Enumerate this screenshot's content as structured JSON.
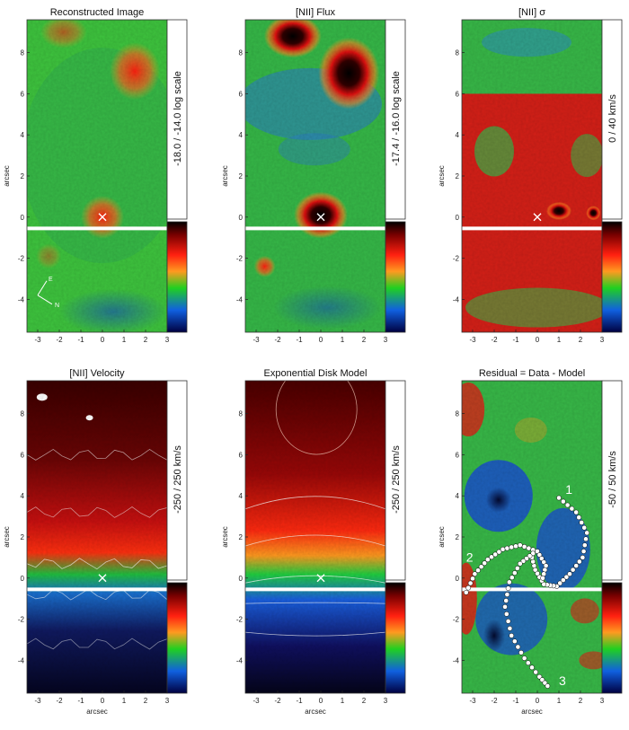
{
  "figure": {
    "panels": [
      {
        "id": "reconstructed",
        "title": "Reconstructed Image",
        "colorbar_label": "-18.0 / -14.0  log scale",
        "map_type": "blobs"
      },
      {
        "id": "nii-flux",
        "title": "[NII] Flux",
        "colorbar_label": "-17.4 / -16.0  log scale",
        "map_type": "blobs"
      },
      {
        "id": "nii-sigma",
        "title": "[NII] σ",
        "colorbar_label": "0 / 40  km/s",
        "map_type": "sigma"
      },
      {
        "id": "nii-velocity",
        "title": "[NII] Velocity",
        "colorbar_label": "-250 / 250  km/s",
        "map_type": "velocity"
      },
      {
        "id": "disk-model",
        "title": "Exponential Disk Model",
        "colorbar_label": "-250 / 250  km/s",
        "map_type": "model"
      },
      {
        "id": "residual",
        "title": "Residual = Data - Model",
        "colorbar_label": "-50 / 50  km/s",
        "map_type": "residual"
      }
    ],
    "x_axis": {
      "label": "arcsec",
      "ticks": [
        "-3",
        "-2",
        "-1",
        "0",
        "1",
        "2",
        "3"
      ]
    },
    "y_axis": {
      "label": "arcsec",
      "ticks": [
        "8",
        "6",
        "4",
        "2",
        "0",
        "-2",
        "-4"
      ]
    },
    "compass": {
      "east": "E",
      "north": "N"
    },
    "residual_tracks": [
      "1",
      "2",
      "3"
    ],
    "colormap": [
      "#ffffff",
      "#c00000",
      "#ff3a1a",
      "#20d020",
      "#1060e0",
      "#0a0a40",
      "#000000"
    ]
  }
}
